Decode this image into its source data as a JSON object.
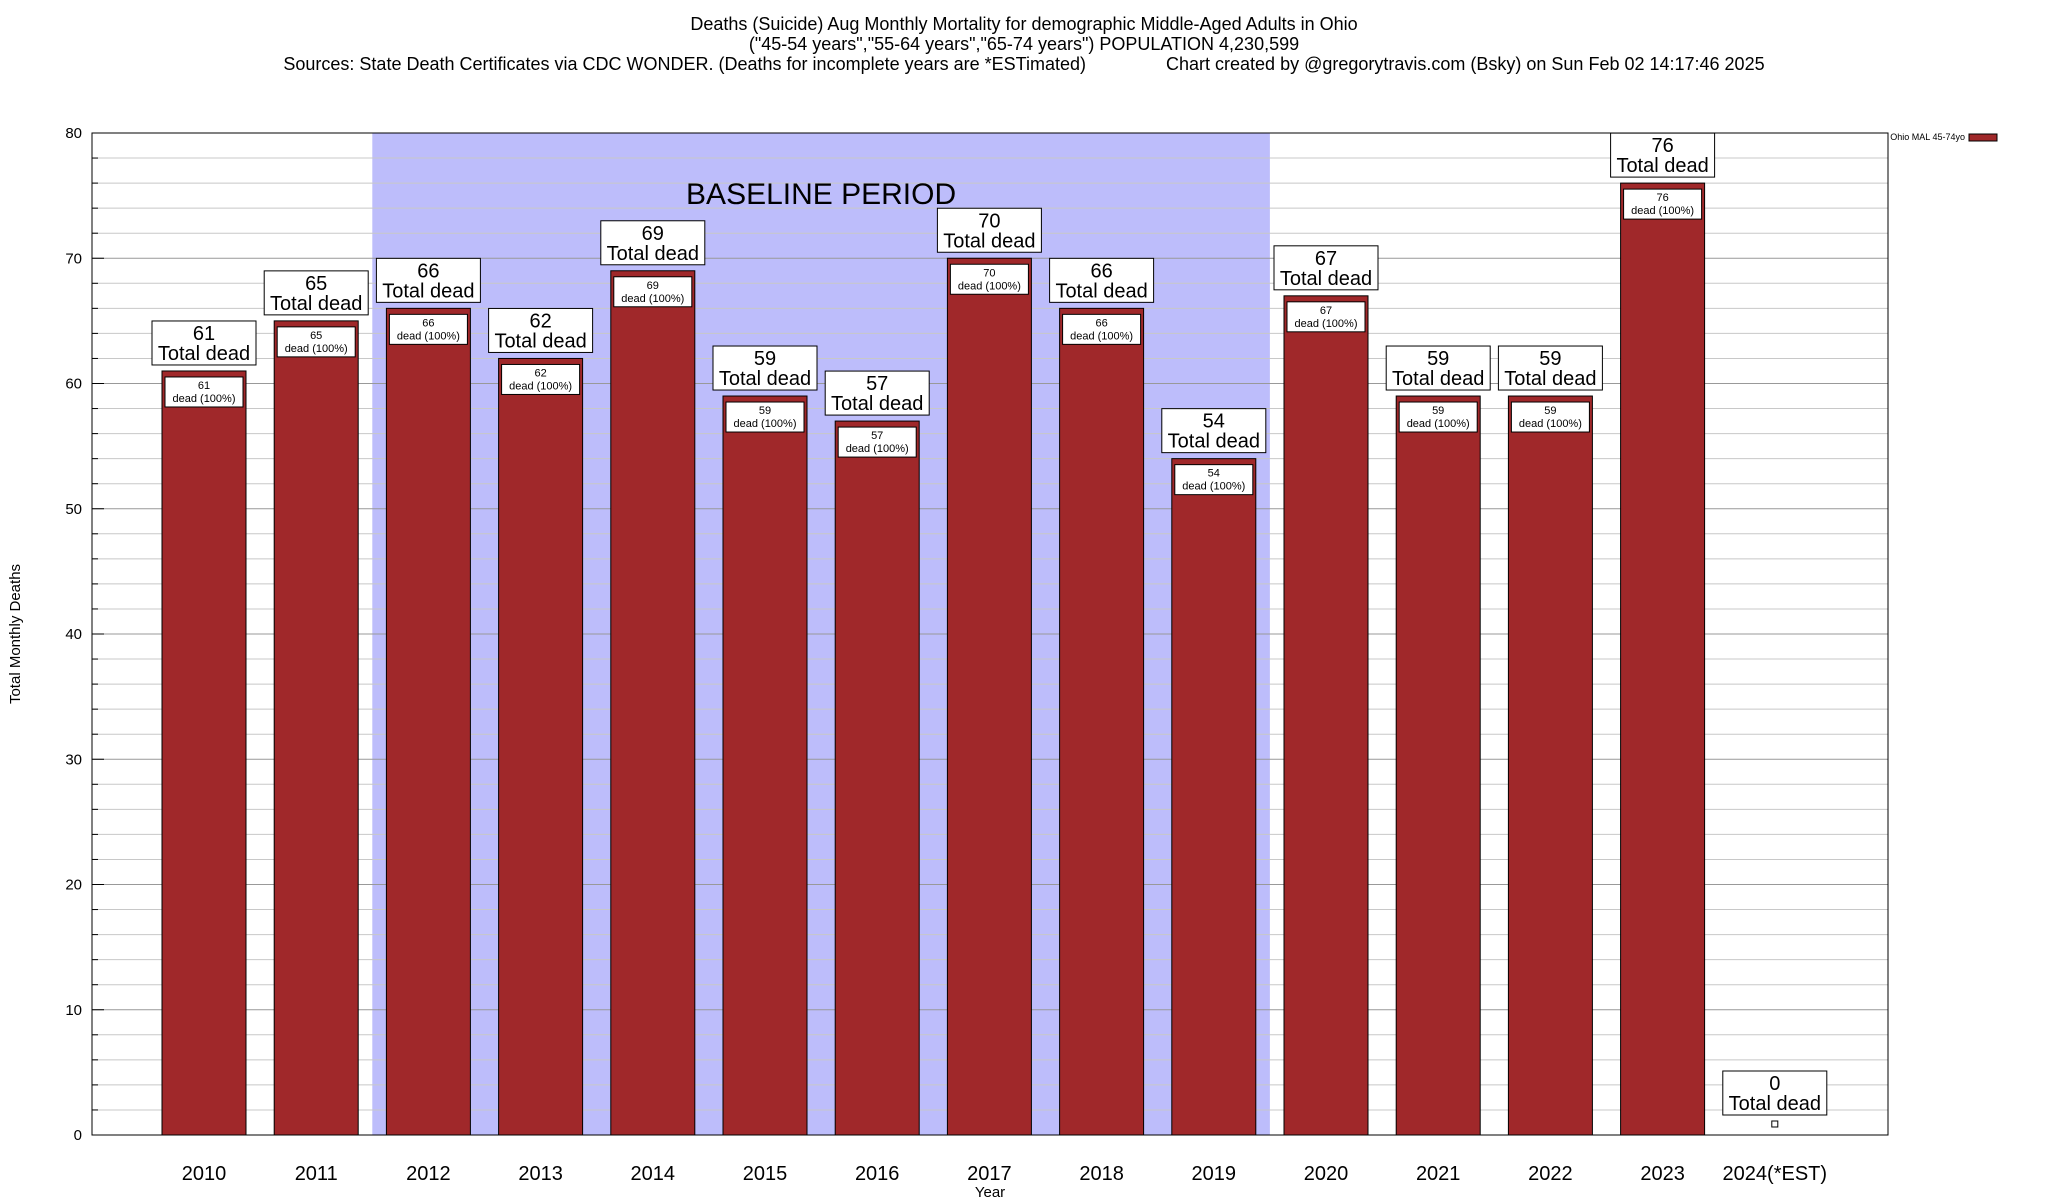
{
  "chart_data": {
    "type": "bar",
    "title_lines": [
      "Deaths (Suicide) Aug Monthly Mortality for demographic Middle-Aged Adults in Ohio",
      "(\"45-54 years\",\"55-64 years\",\"65-74 years\") POPULATION 4,230,599",
      "Sources: State Death Certificates via CDC WONDER. (Deaths for incomplete years are *ESTimated)                Chart created by @gregorytravis.com (Bsky) on Sun Feb 02 14:17:46 2025"
    ],
    "categories": [
      "2010",
      "2011",
      "2012",
      "2013",
      "2014",
      "2015",
      "2016",
      "2017",
      "2018",
      "2019",
      "2020",
      "2021",
      "2022",
      "2023",
      "2024(*EST)"
    ],
    "values": [
      61,
      65,
      66,
      62,
      69,
      59,
      57,
      70,
      66,
      54,
      67,
      59,
      59,
      76,
      0
    ],
    "series": [
      {
        "name": "Ohio MAL 45-74yo",
        "values": [
          61,
          65,
          66,
          62,
          69,
          59,
          57,
          70,
          66,
          54,
          67,
          59,
          59,
          76,
          0
        ]
      }
    ],
    "inner_labels": [
      "61\ndead (100%)",
      "65\ndead (100%)",
      "66\ndead (100%)",
      "62\ndead (100%)",
      "69\ndead (100%)",
      "59\ndead (100%)",
      "57\ndead (100%)",
      "70\ndead (100%)",
      "66\ndead (100%)",
      "54\ndead (100%)",
      "67\ndead (100%)",
      "59\ndead (100%)",
      "59\ndead (100%)",
      "76\ndead (100%)",
      ""
    ],
    "total_label_text": "Total dead",
    "xlabel": "Year",
    "ylabel": "Total Monthly Deaths",
    "ylim": [
      0,
      80
    ],
    "yticks": [
      0,
      10,
      20,
      30,
      40,
      50,
      60,
      70,
      80
    ],
    "baseline_period": {
      "label": "BASELINE PERIOD",
      "start": "2012",
      "end": "2019"
    },
    "legend_position": "top-right",
    "grid": true,
    "colors": {
      "bar": "#a0282a",
      "baseline": "#bdbdfb",
      "grid": "#b0b0b0"
    }
  }
}
